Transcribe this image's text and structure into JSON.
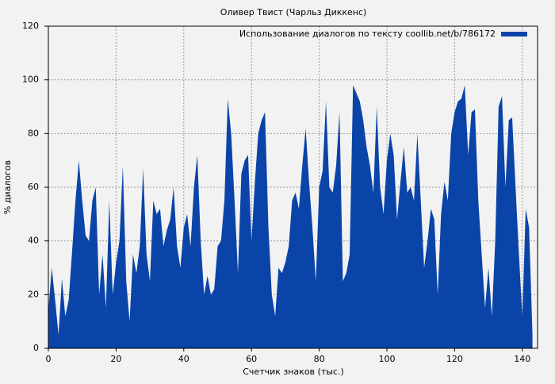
{
  "chart_data": {
    "type": "area",
    "title": "Оливер Твист (Чарльз Диккенс)",
    "x_label": "Счетчик знаков (тыс.)",
    "y_label": "% диалогов",
    "legend_position": "upper right",
    "grid": true,
    "xlim": [
      0,
      144.5
    ],
    "ylim": [
      0,
      120
    ],
    "xticks": [
      0,
      20,
      40,
      60,
      80,
      100,
      120,
      140
    ],
    "yticks": [
      0,
      20,
      40,
      60,
      80,
      100,
      120
    ],
    "x": [
      0,
      1,
      2,
      3,
      4,
      5,
      6,
      7,
      8,
      9,
      10,
      11,
      12,
      13,
      14,
      15,
      16,
      17,
      18,
      19,
      20,
      21,
      22,
      23,
      24,
      25,
      26,
      27,
      28,
      29,
      30,
      31,
      32,
      33,
      34,
      35,
      36,
      37,
      38,
      39,
      40,
      41,
      42,
      43,
      44,
      45,
      46,
      47,
      48,
      49,
      50,
      51,
      52,
      53,
      54,
      55,
      56,
      57,
      58,
      59,
      60,
      61,
      62,
      63,
      64,
      65,
      66,
      67,
      68,
      69,
      70,
      71,
      72,
      73,
      74,
      75,
      76,
      77,
      78,
      79,
      80,
      81,
      82,
      83,
      84,
      85,
      86,
      87,
      88,
      89,
      90,
      91,
      92,
      93,
      94,
      95,
      96,
      97,
      98,
      99,
      100,
      101,
      102,
      103,
      104,
      105,
      106,
      107,
      108,
      109,
      110,
      111,
      112,
      113,
      114,
      115,
      116,
      117,
      118,
      119,
      120,
      121,
      122,
      123,
      124,
      125,
      126,
      127,
      128,
      129,
      130,
      131,
      132,
      133,
      134,
      135,
      136,
      137,
      138,
      139,
      140,
      141,
      142,
      143
    ],
    "series": [
      {
        "name": "Использование диалогов по тексту coollib.net/b/786172",
        "color": "#0b44a8",
        "values": [
          14,
          30,
          18,
          5,
          26,
          12,
          18,
          36,
          55,
          70,
          55,
          42,
          40,
          55,
          60,
          20,
          35,
          15,
          55,
          20,
          32,
          40,
          68,
          25,
          10,
          35,
          28,
          38,
          67,
          35,
          25,
          55,
          50,
          52,
          38,
          44,
          48,
          60,
          38,
          30,
          45,
          50,
          38,
          60,
          72,
          40,
          20,
          27,
          20,
          22,
          38,
          40,
          55,
          93,
          80,
          55,
          28,
          65,
          70,
          72,
          40,
          62,
          80,
          85,
          88,
          45,
          20,
          12,
          30,
          28,
          32,
          38,
          55,
          58,
          52,
          68,
          82,
          62,
          45,
          25,
          60,
          66,
          92,
          60,
          58,
          68,
          88,
          25,
          28,
          35,
          98,
          95,
          92,
          85,
          75,
          68,
          58,
          90,
          60,
          50,
          70,
          80,
          72,
          48,
          62,
          75,
          58,
          60,
          55,
          80,
          55,
          30,
          40,
          52,
          48,
          20,
          50,
          62,
          55,
          80,
          88,
          92,
          93,
          98,
          72,
          88,
          89,
          55,
          35,
          15,
          30,
          12,
          40,
          90,
          94,
          60,
          85,
          86,
          60,
          35,
          12,
          52,
          45,
          5
        ]
      }
    ]
  }
}
